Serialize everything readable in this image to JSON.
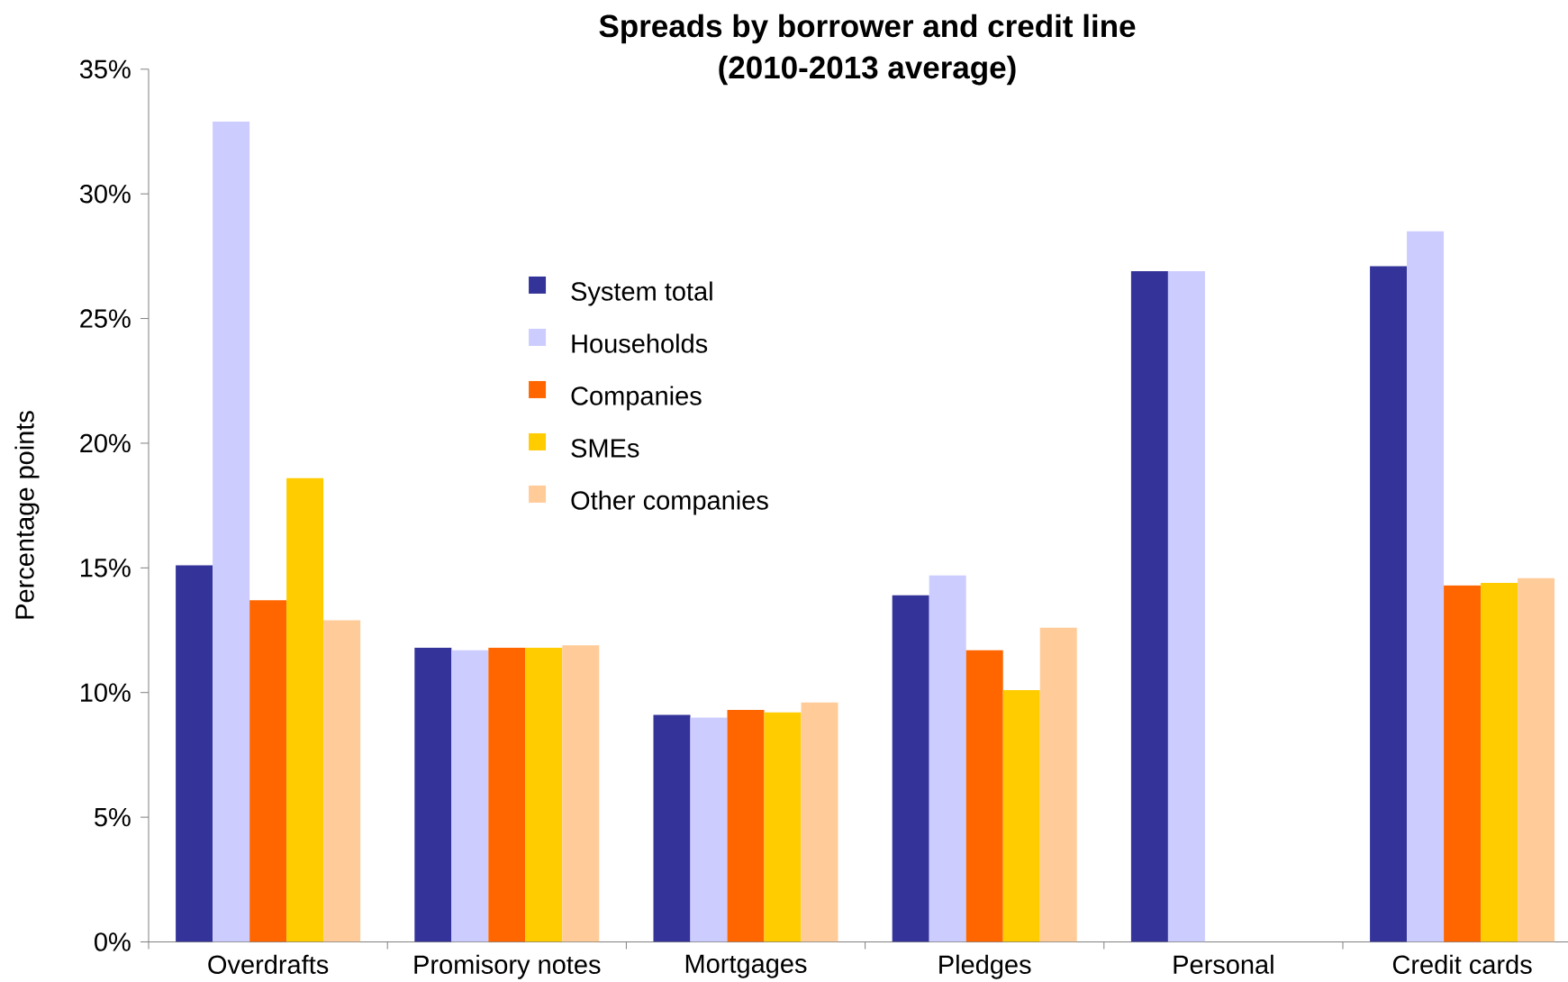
{
  "chart_data": {
    "type": "bar",
    "title": "Spreads by borrower and credit line",
    "subtitle": "(2010-2013 average)",
    "ylabel": "Percentage points",
    "categories": [
      "Overdrafts",
      "Promisory notes",
      "Mortgages",
      "Pledges",
      "Personal",
      "Credit cards"
    ],
    "series": [
      {
        "name": "System total",
        "color": "#333399",
        "values": [
          15.1,
          11.8,
          9.1,
          13.9,
          26.9,
          27.1
        ]
      },
      {
        "name": "Households",
        "color": "#ccccff",
        "values": [
          32.9,
          11.7,
          9.0,
          14.7,
          26.9,
          28.5
        ]
      },
      {
        "name": "Companies",
        "color": "#ff6600",
        "values": [
          13.7,
          11.8,
          9.3,
          11.7,
          null,
          14.3
        ]
      },
      {
        "name": "SMEs",
        "color": "#ffcc00",
        "values": [
          18.6,
          11.8,
          9.2,
          10.1,
          null,
          14.4
        ]
      },
      {
        "name": "Other companies",
        "color": "#ffcc99",
        "values": [
          12.9,
          11.9,
          9.6,
          12.6,
          null,
          14.6
        ]
      }
    ],
    "ylim": [
      0,
      35
    ],
    "yticks": [
      {
        "value": 0,
        "label": "0%"
      },
      {
        "value": 5,
        "label": "5%"
      },
      {
        "value": 10,
        "label": "10%"
      },
      {
        "value": 15,
        "label": "15%"
      },
      {
        "value": 20,
        "label": "20%"
      },
      {
        "value": 25,
        "label": "25%"
      },
      {
        "value": 30,
        "label": "30%"
      },
      {
        "value": 35,
        "label": "35%"
      }
    ],
    "legend": "top left"
  }
}
